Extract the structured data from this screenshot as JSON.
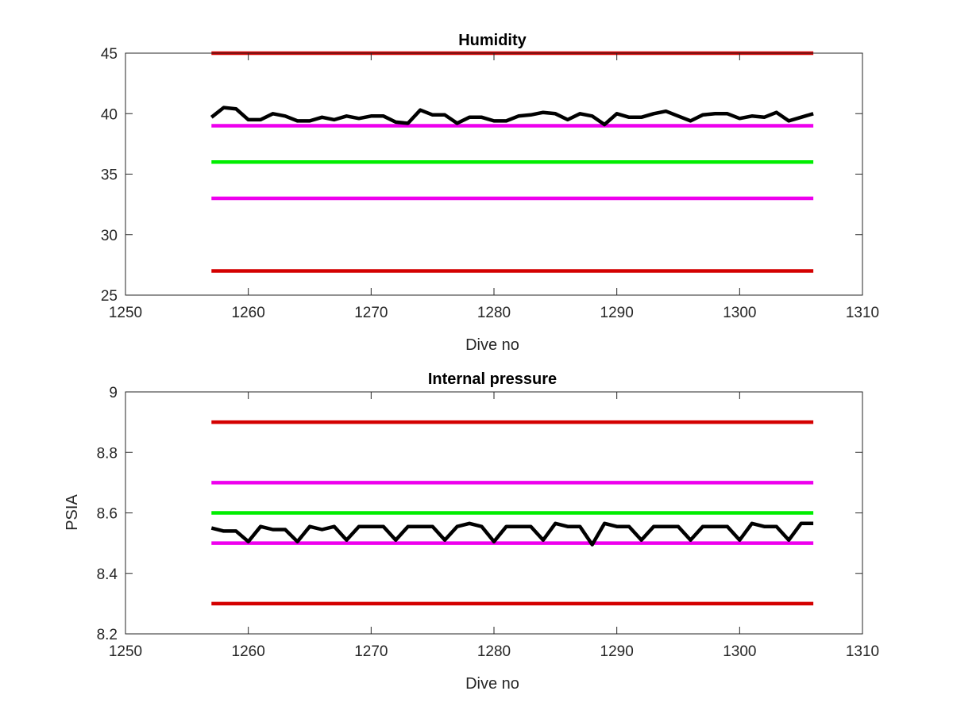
{
  "chart_data": [
    {
      "type": "line",
      "title": "Humidity",
      "xlabel": "Dive no",
      "ylabel": "",
      "xlim": [
        1250,
        1310
      ],
      "ylim": [
        25,
        45
      ],
      "xticks": [
        1250,
        1260,
        1270,
        1280,
        1290,
        1300,
        1310
      ],
      "yticks": [
        25,
        30,
        35,
        40,
        45
      ],
      "grid": false,
      "threshold_lines": [
        {
          "y": 45,
          "x": [
            1257,
            1306
          ],
          "color": "#d40000"
        },
        {
          "y": 39,
          "x": [
            1257,
            1306
          ],
          "color": "#ee00ee"
        },
        {
          "y": 36,
          "x": [
            1257,
            1306
          ],
          "color": "#00ee00"
        },
        {
          "y": 33,
          "x": [
            1257,
            1306
          ],
          "color": "#ee00ee"
        },
        {
          "y": 27,
          "x": [
            1257,
            1306
          ],
          "color": "#d40000"
        }
      ],
      "series": [
        {
          "color": "#000000",
          "x": [
            1257,
            1258,
            1259,
            1260,
            1261,
            1262,
            1263,
            1264,
            1265,
            1266,
            1267,
            1268,
            1269,
            1270,
            1271,
            1272,
            1273,
            1274,
            1275,
            1276,
            1277,
            1278,
            1279,
            1280,
            1281,
            1282,
            1283,
            1284,
            1285,
            1286,
            1287,
            1288,
            1289,
            1290,
            1291,
            1292,
            1293,
            1294,
            1295,
            1296,
            1297,
            1298,
            1299,
            1300,
            1301,
            1302,
            1303,
            1304,
            1305,
            1306
          ],
          "values": [
            39.7,
            40.5,
            40.4,
            39.5,
            39.5,
            40.0,
            39.8,
            39.4,
            39.4,
            39.7,
            39.5,
            39.8,
            39.6,
            39.8,
            39.8,
            39.3,
            39.2,
            40.3,
            39.9,
            39.9,
            39.2,
            39.7,
            39.7,
            39.4,
            39.4,
            39.8,
            39.9,
            40.1,
            40.0,
            39.5,
            40.0,
            39.8,
            39.1,
            40.0,
            39.7,
            39.7,
            40.0,
            40.2,
            39.8,
            39.4,
            39.9,
            40.0,
            40.0,
            39.6,
            39.8,
            39.7,
            40.1,
            39.4,
            39.7,
            40.0
          ]
        }
      ]
    },
    {
      "type": "line",
      "title": "Internal pressure",
      "xlabel": "Dive no",
      "ylabel": "PSIA",
      "xlim": [
        1250,
        1310
      ],
      "ylim": [
        8.2,
        9
      ],
      "xticks": [
        1250,
        1260,
        1270,
        1280,
        1290,
        1300,
        1310
      ],
      "yticks": [
        8.2,
        8.4,
        8.6,
        8.8,
        9
      ],
      "grid": false,
      "threshold_lines": [
        {
          "y": 8.9,
          "x": [
            1257,
            1306
          ],
          "color": "#d40000"
        },
        {
          "y": 8.7,
          "x": [
            1257,
            1306
          ],
          "color": "#ee00ee"
        },
        {
          "y": 8.6,
          "x": [
            1257,
            1306
          ],
          "color": "#00ee00"
        },
        {
          "y": 8.5,
          "x": [
            1257,
            1306
          ],
          "color": "#ee00ee"
        },
        {
          "y": 8.3,
          "x": [
            1257,
            1306
          ],
          "color": "#d40000"
        }
      ],
      "series": [
        {
          "color": "#000000",
          "x": [
            1257,
            1258,
            1259,
            1260,
            1261,
            1262,
            1263,
            1264,
            1265,
            1266,
            1267,
            1268,
            1269,
            1270,
            1271,
            1272,
            1273,
            1274,
            1275,
            1276,
            1277,
            1278,
            1279,
            1280,
            1281,
            1282,
            1283,
            1284,
            1285,
            1286,
            1287,
            1288,
            1289,
            1290,
            1291,
            1292,
            1293,
            1294,
            1295,
            1296,
            1297,
            1298,
            1299,
            1300,
            1301,
            1302,
            1303,
            1304,
            1305,
            1306
          ],
          "values": [
            8.55,
            8.54,
            8.54,
            8.505,
            8.555,
            8.545,
            8.545,
            8.505,
            8.555,
            8.545,
            8.555,
            8.51,
            8.555,
            8.555,
            8.555,
            8.51,
            8.555,
            8.555,
            8.555,
            8.51,
            8.555,
            8.565,
            8.555,
            8.505,
            8.555,
            8.555,
            8.555,
            8.51,
            8.565,
            8.555,
            8.555,
            8.495,
            8.565,
            8.555,
            8.555,
            8.51,
            8.555,
            8.555,
            8.555,
            8.51,
            8.555,
            8.555,
            8.555,
            8.51,
            8.565,
            8.555,
            8.555,
            8.51,
            8.565,
            8.565
          ]
        }
      ]
    }
  ]
}
